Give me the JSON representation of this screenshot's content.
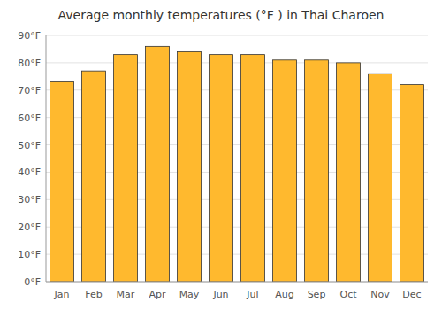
{
  "chart_data": {
    "type": "bar",
    "title": "Average monthly temperatures (°F ) in Thai Charoen",
    "categories": [
      "Jan",
      "Feb",
      "Mar",
      "Apr",
      "May",
      "Jun",
      "Jul",
      "Aug",
      "Sep",
      "Oct",
      "Nov",
      "Dec"
    ],
    "values": [
      73,
      77,
      83,
      86,
      84,
      83,
      83,
      81,
      81,
      80,
      76,
      72
    ],
    "color": "#FFB92E",
    "ylim": [
      0,
      90
    ],
    "yticks": [
      {
        "value": 0,
        "label": "0°F"
      },
      {
        "value": 10,
        "label": "10°F"
      },
      {
        "value": 20,
        "label": "20°F"
      },
      {
        "value": 30,
        "label": "30°F"
      },
      {
        "value": 40,
        "label": "40°F"
      },
      {
        "value": 50,
        "label": "50°F"
      },
      {
        "value": 60,
        "label": "60°F"
      },
      {
        "value": 70,
        "label": "70°F"
      },
      {
        "value": 80,
        "label": "80°F"
      },
      {
        "value": 90,
        "label": "90°F"
      }
    ],
    "grid": true
  }
}
